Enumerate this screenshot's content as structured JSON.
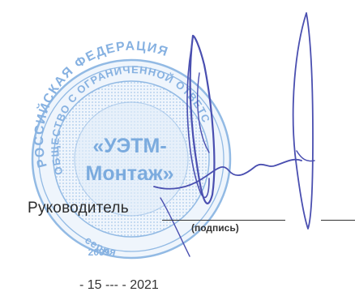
{
  "signature_block": {
    "role": "Руководитель",
    "caption": "(подпись)"
  },
  "stamp": {
    "outer_ring_text": "РОССИЙСКАЯ ФЕДЕРАЦИЯ",
    "inner_ring_text": "ОБЩЕСТВО С ОГРАНИЧЕННОЙ ОТВЕТСТВЕННОСТЬЮ",
    "center_line_1": "«УЭТМ-",
    "center_line_2": "Монтаж»",
    "bottom_text": "серия",
    "year_fragment": "2099",
    "ink_color": "#4f8fd4"
  },
  "signature_ink_color": "#4a4fb0",
  "bottom_fragment": "- 15 --- - 2021"
}
